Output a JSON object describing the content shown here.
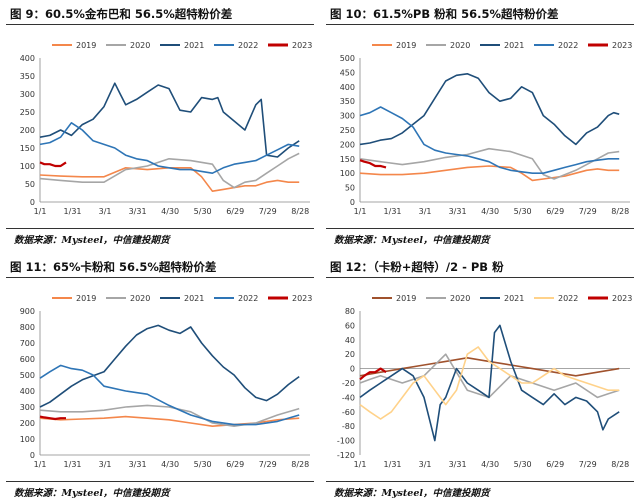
{
  "panels": [
    {
      "title": "图 9：60.5%金布巴和 56.5%超特粉价差",
      "source": "数据来源：Mysteel，中信建投期货"
    },
    {
      "title": "图 10：61.5%PB 粉和 56.5%超特粉价差",
      "source": "数据来源：Mysteel，中信建投期货"
    },
    {
      "title": "图 11：65%卡粉和 56.5%超特粉价差",
      "source": "数据来源：Mysteel，中信建投期货"
    },
    {
      "title": "图 12：（卡粉+超特）/2 - PB 粉",
      "source": "数据来源：Mysteel，中信建投期货"
    }
  ],
  "chart_data": [
    {
      "type": "line",
      "title": "图 9：60.5%金布巴和 56.5%超特粉价差",
      "categories": [
        "1/1",
        "1/31",
        "3/1",
        "3/31",
        "4/30",
        "5/30",
        "6/29",
        "7/29",
        "8/28"
      ],
      "ylim": [
        0,
        400
      ],
      "yticks": [
        0,
        50,
        100,
        150,
        200,
        250,
        300,
        350,
        400
      ],
      "legend_position": "top",
      "series": [
        {
          "name": "2019",
          "color": "#f4874b",
          "x": [
            1,
            20,
            40,
            60,
            80,
            100,
            120,
            140,
            150,
            160,
            170,
            180,
            190,
            200,
            210,
            220,
            230,
            240
          ],
          "values": [
            75,
            72,
            70,
            70,
            95,
            90,
            95,
            95,
            70,
            30,
            35,
            40,
            45,
            45,
            55,
            60,
            55,
            55
          ]
        },
        {
          "name": "2020",
          "color": "#a6a6a6",
          "x": [
            1,
            20,
            40,
            60,
            80,
            100,
            120,
            140,
            160,
            170,
            180,
            190,
            200,
            210,
            220,
            230,
            240
          ],
          "values": [
            65,
            60,
            55,
            55,
            90,
            100,
            120,
            115,
            105,
            60,
            40,
            55,
            60,
            80,
            100,
            120,
            135
          ]
        },
        {
          "name": "2021",
          "color": "#1f4e79",
          "x": [
            1,
            10,
            20,
            30,
            40,
            50,
            60,
            70,
            75,
            80,
            90,
            100,
            110,
            120,
            130,
            140,
            150,
            160,
            165,
            170,
            180,
            190,
            200,
            205,
            210,
            220,
            230,
            240
          ],
          "values": [
            180,
            185,
            200,
            185,
            215,
            230,
            265,
            330,
            300,
            270,
            285,
            305,
            325,
            315,
            255,
            250,
            290,
            285,
            290,
            250,
            225,
            200,
            270,
            285,
            130,
            125,
            150,
            170
          ]
        },
        {
          "name": "2022",
          "color": "#2e75b6",
          "x": [
            1,
            10,
            20,
            30,
            40,
            50,
            60,
            70,
            80,
            90,
            100,
            110,
            120,
            130,
            140,
            150,
            160,
            170,
            180,
            190,
            200,
            210,
            220,
            230,
            240
          ],
          "values": [
            160,
            165,
            180,
            220,
            200,
            170,
            160,
            150,
            130,
            120,
            115,
            100,
            95,
            90,
            90,
            85,
            80,
            95,
            105,
            110,
            115,
            130,
            145,
            160,
            155
          ]
        },
        {
          "name": "2023",
          "color": "#c00000",
          "x": [
            1,
            5,
            10,
            15,
            20,
            25
          ],
          "values": [
            110,
            105,
            105,
            100,
            100,
            110
          ]
        }
      ]
    },
    {
      "type": "line",
      "title": "图 10：61.5%PB 粉和 56.5%超特粉价差",
      "categories": [
        "1/1",
        "1/31",
        "3/1",
        "3/31",
        "4/30",
        "5/30",
        "6/29",
        "7/29",
        "8/28"
      ],
      "ylim": [
        0,
        500
      ],
      "yticks": [
        0,
        50,
        100,
        150,
        200,
        250,
        300,
        350,
        400,
        450,
        500
      ],
      "legend_position": "top",
      "series": [
        {
          "name": "2019",
          "color": "#f4874b",
          "x": [
            1,
            20,
            40,
            60,
            80,
            100,
            120,
            140,
            150,
            160,
            170,
            180,
            190,
            200,
            210,
            220,
            230,
            240
          ],
          "values": [
            100,
            95,
            95,
            100,
            110,
            120,
            125,
            120,
            100,
            75,
            80,
            85,
            90,
            100,
            110,
            115,
            110,
            110
          ]
        },
        {
          "name": "2020",
          "color": "#a6a6a6",
          "x": [
            1,
            20,
            40,
            60,
            80,
            100,
            120,
            140,
            160,
            170,
            180,
            190,
            200,
            210,
            220,
            230,
            240
          ],
          "values": [
            150,
            140,
            130,
            140,
            155,
            165,
            185,
            175,
            150,
            95,
            80,
            95,
            110,
            130,
            150,
            170,
            175
          ]
        },
        {
          "name": "2021",
          "color": "#1f4e79",
          "x": [
            1,
            10,
            20,
            30,
            40,
            50,
            60,
            70,
            80,
            90,
            100,
            110,
            120,
            130,
            140,
            150,
            160,
            170,
            180,
            190,
            200,
            210,
            220,
            230,
            235,
            240
          ],
          "values": [
            200,
            205,
            215,
            220,
            240,
            270,
            300,
            360,
            420,
            440,
            445,
            430,
            380,
            350,
            360,
            400,
            380,
            300,
            270,
            230,
            200,
            240,
            260,
            300,
            310,
            305
          ]
        },
        {
          "name": "2022",
          "color": "#2e75b6",
          "x": [
            1,
            10,
            20,
            30,
            40,
            50,
            60,
            70,
            80,
            90,
            100,
            110,
            120,
            130,
            140,
            150,
            160,
            170,
            180,
            190,
            200,
            210,
            220,
            230,
            240
          ],
          "values": [
            300,
            310,
            330,
            310,
            290,
            260,
            200,
            180,
            170,
            165,
            160,
            150,
            140,
            120,
            110,
            105,
            100,
            100,
            110,
            120,
            130,
            140,
            145,
            150,
            150
          ]
        },
        {
          "name": "2023",
          "color": "#c00000",
          "x": [
            1,
            5,
            10,
            15,
            20,
            25
          ],
          "values": [
            145,
            140,
            135,
            125,
            125,
            120
          ]
        }
      ]
    },
    {
      "type": "line",
      "title": "图 11：65%卡粉和 56.5%超特粉价差",
      "categories": [
        "1/1",
        "1/31",
        "3/1",
        "3/31",
        "4/30",
        "5/30",
        "6/29",
        "7/29",
        "8/28"
      ],
      "ylim": [
        0,
        900
      ],
      "yticks": [
        0,
        100,
        200,
        300,
        400,
        500,
        600,
        700,
        800,
        900
      ],
      "legend_position": "top",
      "series": [
        {
          "name": "2019",
          "color": "#f4874b",
          "x": [
            1,
            20,
            40,
            60,
            80,
            100,
            120,
            140,
            160,
            180,
            200,
            220,
            240
          ],
          "values": [
            230,
            220,
            225,
            230,
            240,
            230,
            220,
            200,
            180,
            190,
            200,
            220,
            230
          ]
        },
        {
          "name": "2020",
          "color": "#a6a6a6",
          "x": [
            1,
            20,
            40,
            60,
            80,
            100,
            120,
            140,
            160,
            180,
            200,
            220,
            240
          ],
          "values": [
            280,
            270,
            270,
            280,
            300,
            310,
            300,
            270,
            200,
            180,
            200,
            250,
            290
          ]
        },
        {
          "name": "2021",
          "color": "#1f4e79",
          "x": [
            1,
            10,
            20,
            30,
            40,
            60,
            70,
            80,
            90,
            100,
            110,
            120,
            130,
            140,
            150,
            160,
            170,
            180,
            190,
            200,
            210,
            220,
            230,
            240
          ],
          "values": [
            300,
            330,
            380,
            430,
            470,
            520,
            600,
            680,
            750,
            790,
            810,
            780,
            760,
            800,
            700,
            620,
            550,
            500,
            420,
            360,
            340,
            380,
            440,
            490
          ]
        },
        {
          "name": "2022",
          "color": "#2e75b6",
          "x": [
            1,
            10,
            20,
            30,
            40,
            50,
            60,
            80,
            100,
            120,
            140,
            160,
            180,
            200,
            220,
            240
          ],
          "values": [
            480,
            520,
            560,
            540,
            530,
            500,
            430,
            400,
            380,
            310,
            250,
            210,
            190,
            190,
            210,
            250
          ]
        },
        {
          "name": "2023",
          "color": "#c00000",
          "x": [
            1,
            5,
            10,
            15,
            20,
            25
          ],
          "values": [
            240,
            235,
            230,
            225,
            230,
            230
          ]
        }
      ]
    },
    {
      "type": "line",
      "title": "图 12：（卡粉+超特）/2 - PB 粉",
      "categories": [
        "1/1",
        "1/31",
        "3/1",
        "3/31",
        "4/30",
        "5/30",
        "6/29",
        "7/29",
        "8/28"
      ],
      "ylim": [
        -120,
        80
      ],
      "yticks": [
        -120,
        -100,
        -80,
        -60,
        -40,
        -20,
        0,
        20,
        40,
        60,
        80
      ],
      "legend_position": "top",
      "series": [
        {
          "name": "2019",
          "color": "#a0522d",
          "x": [
            1,
            20,
            40,
            60,
            80,
            100,
            120,
            140,
            160,
            180,
            200,
            220,
            240
          ],
          "values": [
            -10,
            -5,
            0,
            5,
            10,
            15,
            10,
            5,
            0,
            -5,
            -10,
            -5,
            0
          ]
        },
        {
          "name": "2020",
          "color": "#a6a6a6",
          "x": [
            1,
            10,
            20,
            40,
            60,
            80,
            100,
            120,
            140,
            160,
            180,
            200,
            220,
            230,
            240
          ],
          "values": [
            -20,
            -15,
            -10,
            -20,
            -10,
            20,
            -30,
            -40,
            -10,
            -20,
            -30,
            -20,
            -40,
            -35,
            -30
          ]
        },
        {
          "name": "2021",
          "color": "#1f4e79",
          "x": [
            1,
            10,
            20,
            30,
            40,
            50,
            60,
            70,
            75,
            80,
            90,
            100,
            110,
            120,
            125,
            130,
            140,
            150,
            160,
            170,
            180,
            190,
            200,
            210,
            220,
            225,
            230,
            240
          ],
          "values": [
            -40,
            -30,
            -20,
            -10,
            0,
            -10,
            -40,
            -100,
            -50,
            -40,
            0,
            -20,
            -30,
            -40,
            50,
            60,
            10,
            -30,
            -40,
            -50,
            -35,
            -50,
            -40,
            -45,
            -60,
            -85,
            -70,
            -60
          ]
        },
        {
          "name": "2022",
          "color": "#ffd28a",
          "x": [
            1,
            10,
            20,
            30,
            40,
            50,
            60,
            70,
            80,
            90,
            100,
            110,
            120,
            130,
            140,
            150,
            160,
            170,
            180,
            190,
            200,
            210,
            220,
            230,
            240
          ],
          "values": [
            -50,
            -60,
            -70,
            -60,
            -40,
            -20,
            -10,
            -30,
            -50,
            -30,
            20,
            30,
            10,
            0,
            -10,
            -20,
            -20,
            -10,
            0,
            -10,
            -15,
            -20,
            -25,
            -30,
            -30
          ]
        },
        {
          "name": "2023",
          "color": "#c00000",
          "x": [
            1,
            5,
            10,
            15,
            20,
            25
          ],
          "values": [
            -15,
            -10,
            -5,
            -5,
            0,
            -5
          ]
        }
      ]
    }
  ]
}
